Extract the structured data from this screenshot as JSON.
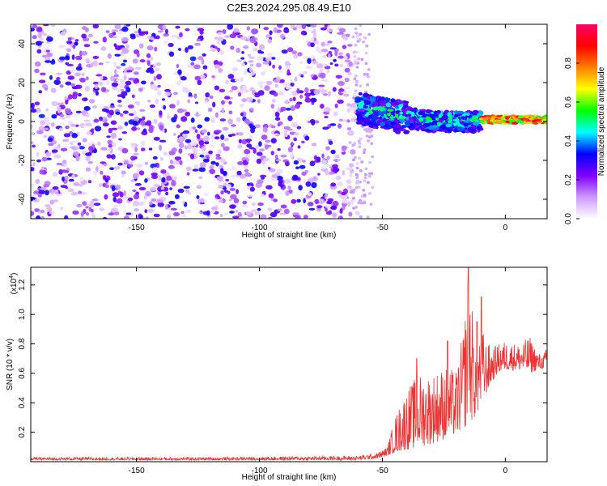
{
  "chart_data": [
    {
      "type": "heatmap",
      "title": "C2E3.2024.295.08.49.E10",
      "xlabel": "Height of straight line (km)",
      "ylabel": "Frequency (Hz)",
      "xlim": [
        -193,
        17
      ],
      "ylim": [
        -50,
        50
      ],
      "xticks": [
        -150,
        -100,
        -50,
        0
      ],
      "yticks": [
        -40,
        -20,
        0,
        20,
        40
      ],
      "grid": false,
      "colorbar": {
        "label": "Normalized spectral amplitude",
        "range": [
          0,
          1
        ],
        "ticks": [
          "0.0",
          "0.2",
          "0.4",
          "0.6",
          "0.8"
        ],
        "colors": [
          "#ffffff",
          "#cc99ff",
          "#7f00ff",
          "#0000ff",
          "#00ffff",
          "#00ff00",
          "#ffff00",
          "#ff7f00",
          "#ff0000",
          "#ff0066"
        ]
      },
      "description_regions": [
        {
          "x_range": [
            -193,
            -60
          ],
          "freq_range": [
            -50,
            50
          ],
          "amplitude": [
            0.0,
            0.35
          ]
        },
        {
          "x_range": [
            -60,
            -10
          ],
          "freq_range": [
            -8,
            8
          ],
          "amplitude": [
            0.2,
            0.6
          ]
        },
        {
          "x_range": [
            -10,
            17
          ],
          "freq_range": [
            -1,
            3
          ],
          "amplitude": [
            0.5,
            1.0
          ]
        }
      ],
      "ridge_line": {
        "x": [
          -78,
          -60,
          -50,
          -40,
          -30,
          -20,
          -10,
          0,
          10,
          17
        ],
        "freq": [
          11,
          8,
          5,
          3,
          1,
          1,
          1,
          1,
          1,
          1
        ]
      }
    },
    {
      "type": "line",
      "xlabel": "Height of straight line (km)",
      "ylabel": "SNR (10 * v/v)",
      "yscale_label": "(x10",
      "yscale_exp": "4",
      "yscale_close": ")",
      "xlim": [
        -193,
        17
      ],
      "ylim": [
        0,
        1.32
      ],
      "xticks": [
        -150,
        -100,
        -50,
        0
      ],
      "yticks": [
        "0.2",
        "0.4",
        "0.6",
        "0.8",
        "1.0",
        "1.2"
      ],
      "ytick_values": [
        0.2,
        0.4,
        0.6,
        0.8,
        1.0,
        1.2
      ],
      "grid": false,
      "color": "#ee3333",
      "envelope": {
        "x": [
          -193,
          -120,
          -60,
          -52,
          -48,
          -45,
          -40,
          -35,
          -30,
          -25,
          -20,
          -17,
          -15,
          -12,
          -10,
          -8,
          -5,
          -3,
          0,
          5,
          10,
          13,
          15,
          17
        ],
        "low": [
          0.01,
          0.01,
          0.01,
          0.02,
          0.04,
          0.06,
          0.08,
          0.1,
          0.12,
          0.15,
          0.18,
          0.22,
          0.26,
          0.3,
          0.38,
          0.45,
          0.55,
          0.6,
          0.62,
          0.62,
          0.6,
          0.62,
          0.63,
          0.64
        ],
        "high": [
          0.03,
          0.03,
          0.04,
          0.06,
          0.1,
          0.3,
          0.5,
          0.6,
          0.6,
          0.65,
          0.62,
          0.9,
          1.32,
          0.8,
          0.95,
          0.82,
          0.78,
          0.8,
          0.82,
          0.8,
          0.85,
          0.75,
          0.72,
          0.78
        ]
      },
      "spikes": [
        {
          "x": -15.0,
          "y": 1.32
        },
        {
          "x": -9.8,
          "y": 1.12
        },
        {
          "x": -36.0,
          "y": 0.7
        },
        {
          "x": -23.5,
          "y": 0.82
        },
        {
          "x": -11.5,
          "y": 0.95
        }
      ]
    }
  ]
}
